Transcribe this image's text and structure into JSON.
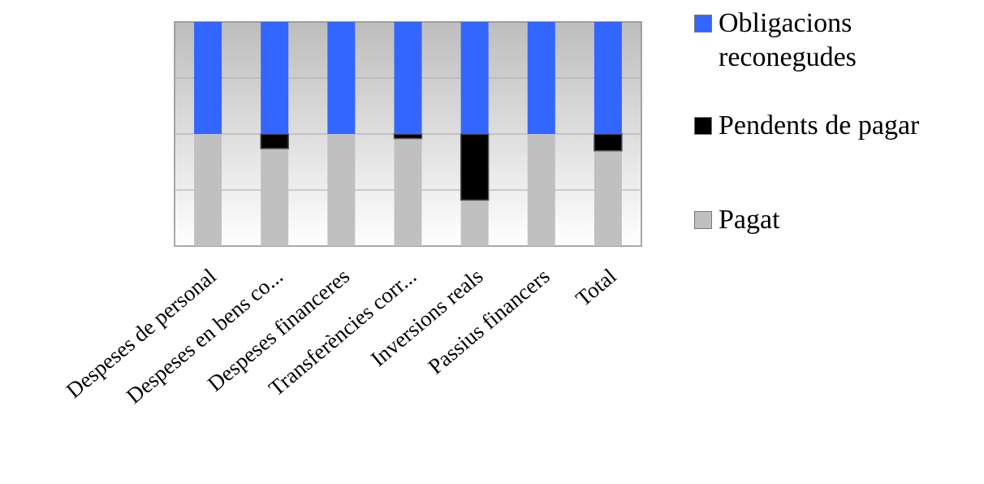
{
  "chart_data": {
    "type": "bar",
    "stacked": true,
    "normalized": true,
    "categories": [
      "Despeses de personal",
      "Despeses en bens co...",
      "Despeses financeres",
      "Transferències corr...",
      "Inversions reals",
      "Passius financers",
      "Total"
    ],
    "series": [
      {
        "name": "Pagat",
        "color": "#c0c0c0",
        "values": [
          50,
          43.5,
          50,
          48,
          20.5,
          50,
          42.5
        ]
      },
      {
        "name": "Pendents de pagar",
        "color": "#000000",
        "values": [
          0,
          6.5,
          0,
          2,
          29.5,
          0,
          7.5
        ]
      },
      {
        "name": "Obligacions reconegudes",
        "color": "#3366ff",
        "values": [
          50,
          50,
          50,
          50,
          50,
          50,
          50
        ]
      }
    ],
    "ylim": [
      0,
      100
    ],
    "grid": true,
    "legend_position": "right",
    "title": "",
    "xlabel": "",
    "ylabel": ""
  },
  "legend": [
    {
      "label": "Obligacions reconegudes",
      "color": "#3366ff"
    },
    {
      "label": "Pendents de pagar",
      "color": "#000000"
    },
    {
      "label": "Pagat",
      "color": "#c0c0c0"
    }
  ]
}
